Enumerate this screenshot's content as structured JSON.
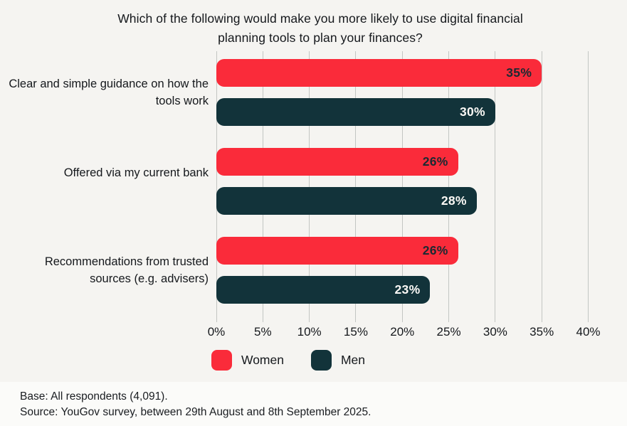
{
  "chart_data": {
    "type": "bar",
    "orientation": "horizontal",
    "title": "Which of the following would make you more likely to use digital financial planning tools to plan your finances?",
    "categories": [
      "Clear and simple guidance on how the tools work",
      "Offered via my current bank",
      "Recommendations from trusted sources (e.g. advisers)"
    ],
    "series": [
      {
        "name": "Women",
        "color": "#FA2B3A",
        "label_color": "#1B2A32",
        "values": [
          35,
          26,
          26
        ]
      },
      {
        "name": "Men",
        "color": "#12333A",
        "label_color": "#FAF8F5",
        "values": [
          30,
          28,
          23
        ]
      }
    ],
    "value_suffix": "%",
    "xlim": [
      0,
      40
    ],
    "x_ticks": [
      "0%",
      "5%",
      "10%",
      "15%",
      "20%",
      "25%",
      "30%",
      "35%",
      "40%"
    ],
    "grid": true,
    "legend_position": "bottom"
  },
  "footer": {
    "base": "Base: All respondents (4,091).",
    "source": "Source: YouGov survey, between 29th August and 8th September 2025."
  }
}
